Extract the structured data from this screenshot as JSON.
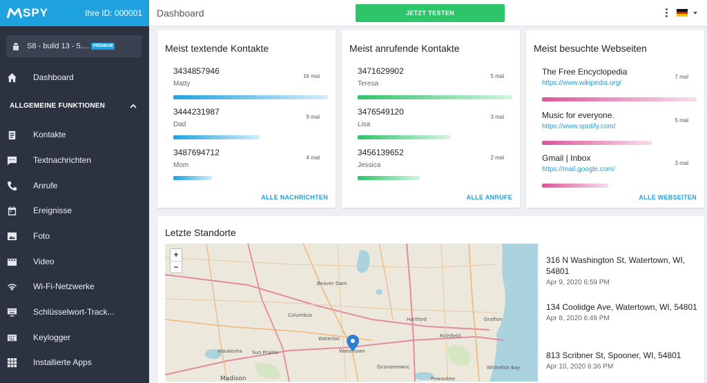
{
  "brand": {
    "logo": "SPY",
    "user_id": "Ihre ID: 000001"
  },
  "device": {
    "name": "S8 - build 13 - 5....",
    "badge": "PREMIUM"
  },
  "sidebar": {
    "section_label": "ALLGEMEINE FUNKTIONEN",
    "items": [
      {
        "label": "Dashboard",
        "icon": "home-icon"
      },
      {
        "label": "Kontakte",
        "icon": "contacts-icon"
      },
      {
        "label": "Textnachrichten",
        "icon": "message-icon"
      },
      {
        "label": "Anrufe",
        "icon": "phone-icon"
      },
      {
        "label": "Ereignisse",
        "icon": "calendar-icon"
      },
      {
        "label": "Foto",
        "icon": "photo-icon"
      },
      {
        "label": "Video",
        "icon": "video-icon"
      },
      {
        "label": "Wi-Fi-Netzwerke",
        "icon": "wifi-icon"
      },
      {
        "label": "Schlüsselwort-Track...",
        "icon": "keyword-icon"
      },
      {
        "label": "Keylogger",
        "icon": "keyboard-icon"
      },
      {
        "label": "Installierte Apps",
        "icon": "apps-icon"
      }
    ]
  },
  "topbar": {
    "title": "Dashboard",
    "cta": "JETZT TESTEN",
    "language_flag": "de-flag-icon"
  },
  "cards": {
    "texting": {
      "title": "Meist textende Kontakte",
      "link": "ALLE NACHRICHTEN",
      "color": "#1fa3e0",
      "entries": [
        {
          "main": "3434857946",
          "sub": "Matty",
          "count": "16 mal",
          "level": 1.0
        },
        {
          "main": "3444231987",
          "sub": "Dad",
          "count": "9 mal",
          "level": 0.56
        },
        {
          "main": "3487694712",
          "sub": "Mom",
          "count": "4 mal",
          "level": 0.25
        }
      ]
    },
    "calling": {
      "title": "Meist anrufende Kontakte",
      "link": "ALLE ANRUFE",
      "color": "#2ec46a",
      "entries": [
        {
          "main": "3471629902",
          "sub": "Teresa",
          "count": "5 mal",
          "level": 1.0
        },
        {
          "main": "3476549120",
          "sub": "Lisa",
          "count": "3 mal",
          "level": 0.6
        },
        {
          "main": "3456139652",
          "sub": "Jessica",
          "count": "2 mal",
          "level": 0.4
        }
      ]
    },
    "websites": {
      "title": "Meist besuchte Webseiten",
      "link": "ALLE WEBSEITEN",
      "color": "#d9569a",
      "entries": [
        {
          "main": "The Free Encyclopedia",
          "link": "https://www.wikipedia.org/",
          "count": "7 mal",
          "level": 1.0
        },
        {
          "main": "Music for everyone.",
          "link": "https://www.spotify.com/",
          "count": "5 mal",
          "level": 0.71
        },
        {
          "main": "Gmail | Inbox",
          "link": "https://mail.google.com/",
          "count": "3 mal",
          "level": 0.43
        }
      ]
    }
  },
  "locations": {
    "title": "Letzte Standorte",
    "zoom_in": "+",
    "zoom_out": "−",
    "map_labels": [
      "Beaver Dam",
      "Columbus",
      "Hartford",
      "Grafton",
      "Waterloo",
      "Richfield",
      "Waukesha",
      "Sun Prairie",
      "Watertown",
      "Oconomowoc",
      "Whitefish Bay",
      "Madison",
      "Pewaukee",
      "Brookfield",
      "Wauwatosa"
    ],
    "items": [
      {
        "address": "316 N Washington St, Watertown, WI, 54801",
        "time": "Apr 9, 2020 6:59 PM"
      },
      {
        "address": "134 Coolidge Ave, Watertown, WI, 54801",
        "time": "Apr 8, 2020 6:49 PM"
      },
      {
        "address": "813 Scribner St, Spooner, WI, 54801",
        "time": "Apr 10, 2020 6:36 PM"
      }
    ]
  }
}
